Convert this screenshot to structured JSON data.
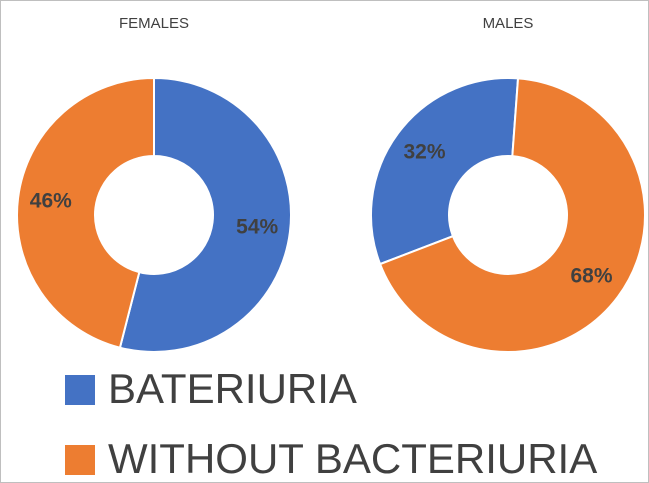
{
  "chart_data": [
    {
      "type": "pie",
      "title": "FEMALES",
      "categories": [
        "BATERIURIA",
        "WITHOUT BACTERIURIA"
      ],
      "values": [
        54,
        46
      ],
      "value_labels": [
        "54%",
        "46%"
      ],
      "colors": [
        "#4472c4",
        "#ed7d31"
      ]
    },
    {
      "type": "pie",
      "title": "MALES",
      "categories": [
        "BATERIURIA",
        "WITHOUT BACTERIURIA"
      ],
      "values": [
        32,
        68
      ],
      "value_labels": [
        "32%",
        "68%"
      ],
      "colors": [
        "#4472c4",
        "#ed7d31"
      ]
    }
  ]
}
